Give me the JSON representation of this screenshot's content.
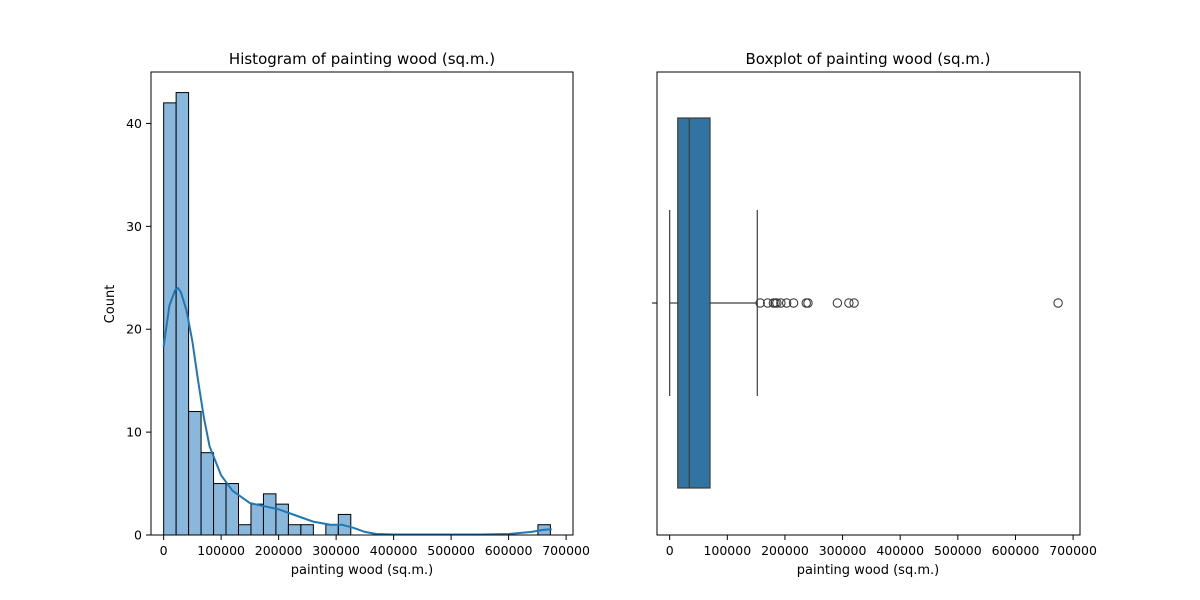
{
  "chart_data": [
    {
      "type": "histogram",
      "title": "Histogram of painting wood (sq.m.)",
      "xlabel": "painting wood (sq.m.)",
      "ylabel": "Count",
      "xlim": [
        -22000,
        712000
      ],
      "ylim": [
        0,
        45
      ],
      "xticks": [
        0,
        100000,
        200000,
        300000,
        400000,
        500000,
        600000,
        700000
      ],
      "xtick_labels": [
        "0",
        "100000",
        "200000",
        "300000",
        "400000",
        "500000",
        "600000",
        "700000"
      ],
      "yticks": [
        0,
        10,
        20,
        30,
        40
      ],
      "ytick_labels": [
        "0",
        "10",
        "20",
        "30",
        "40"
      ],
      "bin_width": 21700,
      "bin_start": 0,
      "counts": [
        42,
        43,
        12,
        8,
        5,
        5,
        1,
        3,
        4,
        3,
        1,
        1,
        0,
        1,
        2,
        0,
        0,
        0,
        0,
        0,
        0,
        0,
        0,
        0,
        0,
        0,
        0,
        0,
        0,
        0,
        1
      ],
      "bar_color": "#8ab8dc",
      "edge_color": "#000000",
      "kde": {
        "x": [
          0,
          10000,
          20000,
          25000,
          30000,
          40000,
          50000,
          60000,
          70000,
          80000,
          100000,
          120000,
          150000,
          175000,
          200000,
          230000,
          260000,
          290000,
          310000,
          330000,
          350000,
          370000,
          400000,
          450000,
          500000,
          550000,
          600000,
          640000,
          660000,
          675000
        ],
        "y": [
          18.3,
          22.3,
          23.8,
          24.0,
          23.6,
          21.8,
          18.8,
          15.0,
          11.4,
          8.6,
          5.8,
          4.3,
          3.1,
          2.8,
          2.5,
          1.9,
          1.3,
          1.0,
          1.0,
          0.7,
          0.3,
          0.1,
          0.05,
          0.05,
          0.05,
          0.05,
          0.1,
          0.3,
          0.5,
          0.55
        ],
        "color": "#1f77b4"
      }
    },
    {
      "type": "boxplot",
      "title": "Boxplot of painting wood (sq.m.)",
      "xlabel": "painting wood (sq.m.)",
      "xlim": [
        -22000,
        712000
      ],
      "xticks": [
        0,
        100000,
        200000,
        300000,
        400000,
        500000,
        600000,
        700000
      ],
      "xtick_labels": [
        "0",
        "100000",
        "200000",
        "300000",
        "400000",
        "500000",
        "600000",
        "700000"
      ],
      "whisker_low": 0,
      "q1": 14000,
      "median": 34000,
      "q3": 70000,
      "whisker_high": 152000,
      "outliers": [
        157000,
        170000,
        180000,
        183000,
        186000,
        193000,
        203000,
        215000,
        237000,
        240000,
        291000,
        311000,
        320000,
        674000
      ],
      "box_color": "#3274a1"
    }
  ]
}
